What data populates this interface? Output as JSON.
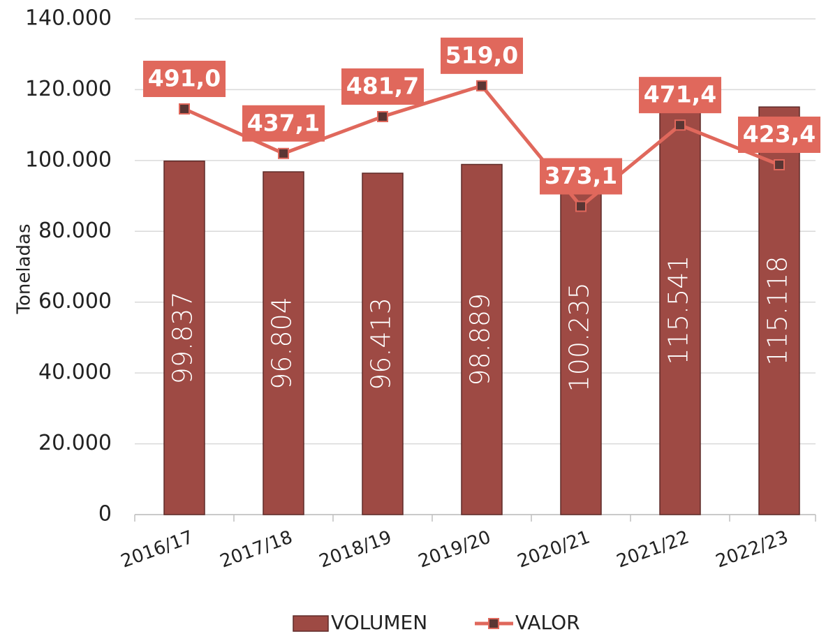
{
  "chart_data": {
    "type": "bar",
    "y_label": "Toneladas",
    "categories": [
      "2016/17",
      "2017/18",
      "2018/19",
      "2019/20",
      "2020/21",
      "2021/22",
      "2022/23"
    ],
    "series": [
      {
        "name": "VOLUMEN",
        "type": "bar",
        "color": "#9e4a44",
        "values": [
          99837,
          96804,
          96413,
          98889,
          100235,
          115541,
          115118
        ],
        "value_labels": [
          "99.837",
          "96.804",
          "96.413",
          "98.889",
          "100.235",
          "115.541",
          "115.118"
        ]
      },
      {
        "name": "VALOR",
        "type": "line",
        "axis": "y2",
        "color": "#e0685c",
        "values": [
          491.0,
          437.1,
          481.7,
          519.0,
          373.1,
          471.4,
          423.4
        ],
        "value_labels": [
          "491,0",
          "437,1",
          "481,7",
          "519,0",
          "373,1",
          "471,4",
          "423,4"
        ]
      }
    ],
    "ylim": [
      0,
      140000
    ],
    "yticks": [
      0,
      {
        "value": 20000,
        "label": "20.000"
      },
      {
        "value": 40000,
        "label": "40.000"
      },
      {
        "value": 60000,
        "label": "60.000"
      },
      {
        "value": 80000,
        "label": "80.000"
      },
      {
        "value": 100000,
        "label": "100.000"
      },
      {
        "value": 120000,
        "label": "120.000"
      },
      {
        "value": 140000,
        "label": "140.000"
      }
    ],
    "y2lim": [
      0,
      600
    ],
    "grid": true,
    "legend": "bottom"
  }
}
